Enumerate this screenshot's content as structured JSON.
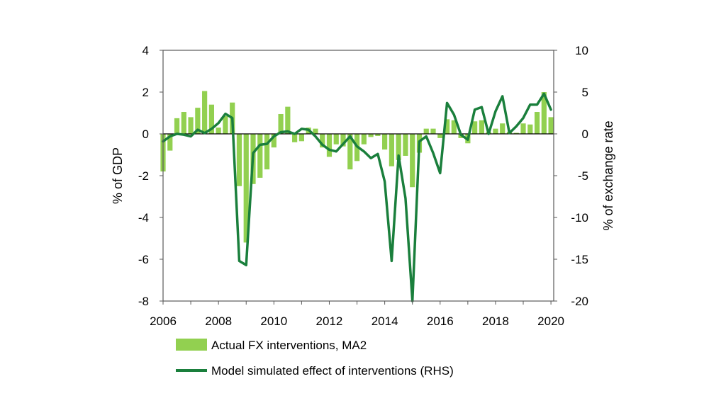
{
  "chart_data": {
    "type": "bar+line",
    "x_ticks": [
      "2006",
      "2008",
      "2010",
      "2012",
      "2014",
      "2016",
      "2018",
      "2020"
    ],
    "x_range": [
      2006,
      2020.1
    ],
    "left_axis": {
      "label": "% of GDP",
      "range": [
        -8,
        4
      ],
      "ticks": [
        "4",
        "2",
        "0",
        "-2",
        "-4",
        "-6",
        "-8"
      ]
    },
    "right_axis": {
      "label": "% of exchange rate",
      "range": [
        -20,
        10
      ],
      "ticks": [
        "10",
        "5",
        "0",
        "-5",
        "-10",
        "-15",
        "-20"
      ]
    },
    "colors": {
      "bars": "#92d050",
      "line": "#1a7f3c",
      "axis": "#595959"
    },
    "series": [
      {
        "name": "Actual FX interventions, MA2",
        "type": "bar",
        "axis": "left",
        "x": [
          2006.0,
          2006.25,
          2006.5,
          2006.75,
          2007.0,
          2007.25,
          2007.5,
          2007.75,
          2008.0,
          2008.25,
          2008.5,
          2008.75,
          2009.0,
          2009.25,
          2009.5,
          2009.75,
          2010.0,
          2010.25,
          2010.5,
          2010.75,
          2011.0,
          2011.25,
          2011.5,
          2011.75,
          2012.0,
          2012.25,
          2012.5,
          2012.75,
          2013.0,
          2013.25,
          2013.5,
          2013.75,
          2014.0,
          2014.25,
          2014.5,
          2014.75,
          2015.0,
          2015.25,
          2015.5,
          2015.75,
          2016.0,
          2016.25,
          2016.5,
          2016.75,
          2017.0,
          2017.25,
          2017.5,
          2017.75,
          2018.0,
          2018.25,
          2018.5,
          2018.75,
          2019.0,
          2019.25,
          2019.5,
          2019.75,
          2020.0
        ],
        "values": [
          -1.8,
          -0.8,
          0.75,
          1.05,
          0.8,
          1.25,
          2.05,
          1.4,
          0.3,
          0.85,
          1.5,
          -2.5,
          -5.2,
          -2.4,
          -2.1,
          -1.7,
          -0.65,
          0.95,
          1.3,
          -0.4,
          -0.35,
          0.3,
          0.25,
          -0.65,
          -1.1,
          -0.5,
          -0.6,
          -1.7,
          -1.3,
          -0.5,
          -0.15,
          -0.1,
          -0.75,
          -1.55,
          -1.25,
          -1.05,
          -2.55,
          -0.9,
          0.25,
          0.25,
          -0.2,
          0.7,
          0.65,
          -0.2,
          -0.45,
          0.6,
          0.65,
          0.1,
          0.25,
          0.5,
          0.1,
          0.05,
          0.5,
          0.45,
          1.05,
          2.0,
          0.8
        ]
      },
      {
        "name": "Model simulated effect of interventions (RHS)",
        "type": "line",
        "axis": "right",
        "x": [
          2006.0,
          2006.25,
          2006.5,
          2006.75,
          2007.0,
          2007.25,
          2007.5,
          2007.75,
          2008.0,
          2008.25,
          2008.5,
          2008.75,
          2009.0,
          2009.25,
          2009.5,
          2009.75,
          2010.0,
          2010.25,
          2010.5,
          2010.75,
          2011.0,
          2011.25,
          2011.5,
          2011.75,
          2012.0,
          2012.25,
          2012.5,
          2012.75,
          2013.0,
          2013.25,
          2013.5,
          2013.75,
          2014.0,
          2014.25,
          2014.5,
          2014.75,
          2015.0,
          2015.25,
          2015.5,
          2015.75,
          2016.0,
          2016.25,
          2016.5,
          2016.75,
          2017.0,
          2017.25,
          2017.5,
          2017.75,
          2018.0,
          2018.25,
          2018.5,
          2018.75,
          2019.0,
          2019.25,
          2019.5,
          2019.75,
          2020.0
        ],
        "values": [
          -0.9,
          -0.3,
          0.0,
          -0.1,
          -0.3,
          0.5,
          0.1,
          0.6,
          1.3,
          2.4,
          1.9,
          -15.2,
          -15.7,
          -2.3,
          -1.3,
          -1.2,
          -0.3,
          0.2,
          0.3,
          0.0,
          0.6,
          0.5,
          -0.3,
          -1.3,
          -1.9,
          -2.1,
          -1.2,
          -0.3,
          -1.5,
          -2.1,
          -2.9,
          -2.4,
          -5.7,
          -15.2,
          -2.6,
          -7.7,
          -20.2,
          -0.9,
          -0.3,
          -2.3,
          -4.7,
          3.7,
          2.3,
          -0.1,
          -0.7,
          2.9,
          3.2,
          0.0,
          2.7,
          4.5,
          0.1,
          0.9,
          1.9,
          3.5,
          3.5,
          4.8,
          2.9
        ]
      }
    ]
  }
}
